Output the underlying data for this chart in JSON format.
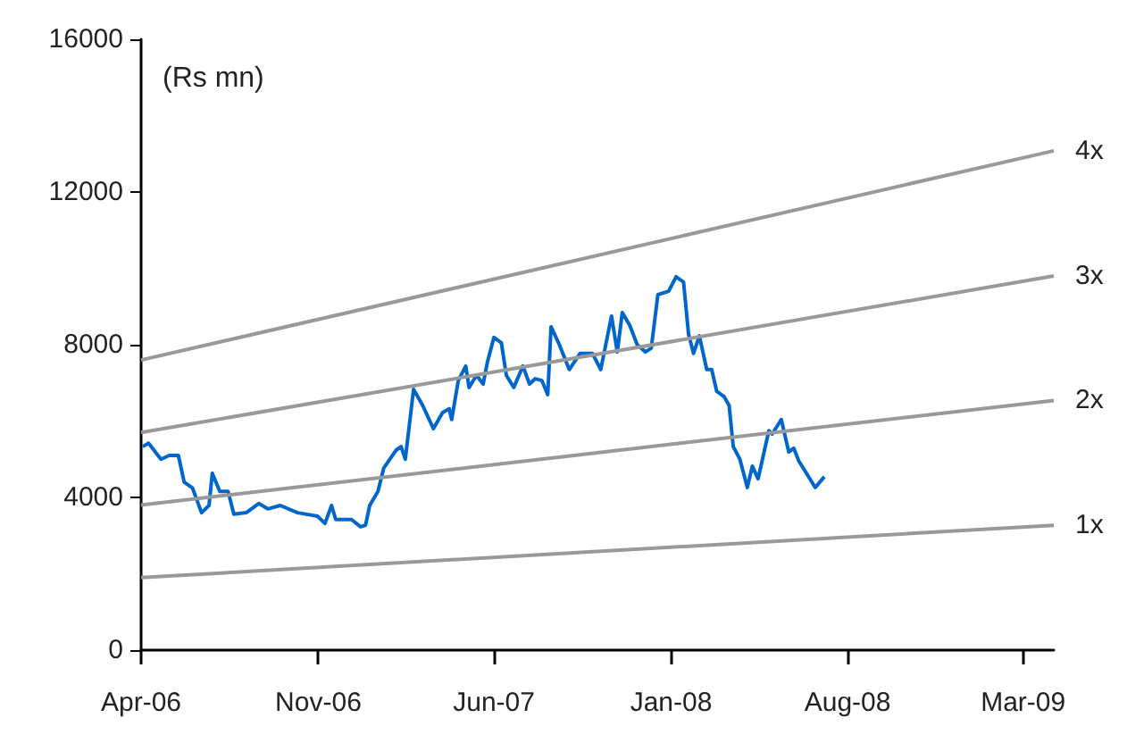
{
  "chart_data": {
    "type": "line",
    "ylabel": "(Rs mn)",
    "xlim": [
      "2006-04-01",
      "2009-04-07"
    ],
    "xticks": [
      {
        "value": "2006-04-01",
        "label": "Apr-06"
      },
      {
        "value": "2006-11-01",
        "label": "Nov-06"
      },
      {
        "value": "2007-06-01",
        "label": "Jun-07"
      },
      {
        "value": "2008-01-01",
        "label": "Jan-08"
      },
      {
        "value": "2008-08-01",
        "label": "Aug-08"
      },
      {
        "value": "2009-03-01",
        "label": "Mar-09"
      }
    ],
    "ylim": [
      0,
      16000
    ],
    "yticks": [
      0,
      4000,
      8000,
      12000,
      16000
    ],
    "grid": false,
    "legend": false,
    "marker": "none",
    "line_style": "solid",
    "series": [
      {
        "color": "#0066cc",
        "x": [
          "2006-04-03",
          "2006-04-10",
          "2006-04-25",
          "2006-05-05",
          "2006-05-16",
          "2006-05-23",
          "2006-06-02",
          "2006-06-13",
          "2006-06-22",
          "2006-06-26",
          "2006-07-05",
          "2006-07-15",
          "2006-07-22",
          "2006-08-06",
          "2006-08-21",
          "2006-09-01",
          "2006-09-16",
          "2006-10-07",
          "2006-10-31",
          "2006-11-09",
          "2006-11-17",
          "2006-11-22",
          "2006-12-11",
          "2006-12-22",
          "2006-12-28",
          "2007-01-02",
          "2007-01-12",
          "2007-01-19",
          "2007-02-03",
          "2007-02-09",
          "2007-02-14",
          "2007-02-24",
          "2007-03-07",
          "2007-03-20",
          "2007-03-31",
          "2007-04-08",
          "2007-04-11",
          "2007-04-19",
          "2007-04-28",
          "2007-05-02",
          "2007-05-11",
          "2007-05-19",
          "2007-05-24",
          "2007-06-01",
          "2007-06-10",
          "2007-06-16",
          "2007-06-25",
          "2007-07-06",
          "2007-07-14",
          "2007-07-21",
          "2007-07-29",
          "2007-08-05",
          "2007-08-09",
          "2007-08-18",
          "2007-08-31",
          "2007-09-13",
          "2007-09-28",
          "2007-10-08",
          "2007-10-21",
          "2007-10-28",
          "2007-11-03",
          "2007-11-12",
          "2007-11-21",
          "2007-12-01",
          "2007-12-08",
          "2007-12-16",
          "2007-12-29",
          "2008-01-07",
          "2008-01-16",
          "2008-01-22",
          "2008-01-28",
          "2008-02-04",
          "2008-02-13",
          "2008-02-19",
          "2008-02-25",
          "2008-03-05",
          "2008-03-11",
          "2008-03-16",
          "2008-03-24",
          "2008-04-02",
          "2008-04-08",
          "2008-04-15",
          "2008-04-28",
          "2008-05-02",
          "2008-05-13",
          "2008-05-22",
          "2008-05-28",
          "2008-06-03",
          "2008-06-23",
          "2008-07-04"
        ],
        "values": [
          5330,
          5420,
          5000,
          5100,
          5100,
          4400,
          4250,
          3600,
          3790,
          4630,
          4160,
          4160,
          3560,
          3600,
          3840,
          3700,
          3790,
          3600,
          3510,
          3320,
          3790,
          3420,
          3420,
          3230,
          3270,
          3790,
          4160,
          4770,
          5240,
          5330,
          5000,
          6830,
          6410,
          5800,
          6220,
          6320,
          6040,
          7060,
          7440,
          6880,
          7200,
          6970,
          7530,
          8190,
          8050,
          7200,
          6880,
          7440,
          6970,
          7110,
          7060,
          6690,
          8470,
          8050,
          7350,
          7770,
          7770,
          7350,
          8750,
          7810,
          8840,
          8510,
          8000,
          7810,
          7910,
          9310,
          9400,
          9780,
          9640,
          8280,
          7770,
          8230,
          7350,
          7350,
          6780,
          6640,
          6410,
          5330,
          5000,
          4260,
          4820,
          4490,
          5750,
          5660,
          6040,
          5190,
          5290,
          4960,
          4260,
          4540
        ]
      },
      {
        "name": "4x",
        "color": "#999999",
        "x": [
          "2006-04-01",
          "2009-04-07"
        ],
        "values": [
          7600,
          13080
        ]
      },
      {
        "name": "3x",
        "color": "#999999",
        "x": [
          "2006-04-01",
          "2009-04-07"
        ],
        "values": [
          5700,
          9800
        ]
      },
      {
        "name": "2x",
        "color": "#999999",
        "x": [
          "2006-04-01",
          "2009-04-07"
        ],
        "values": [
          3800,
          6540
        ]
      },
      {
        "name": "1x",
        "color": "#999999",
        "x": [
          "2006-04-01",
          "2009-04-07"
        ],
        "values": [
          1900,
          3270
        ]
      }
    ]
  }
}
